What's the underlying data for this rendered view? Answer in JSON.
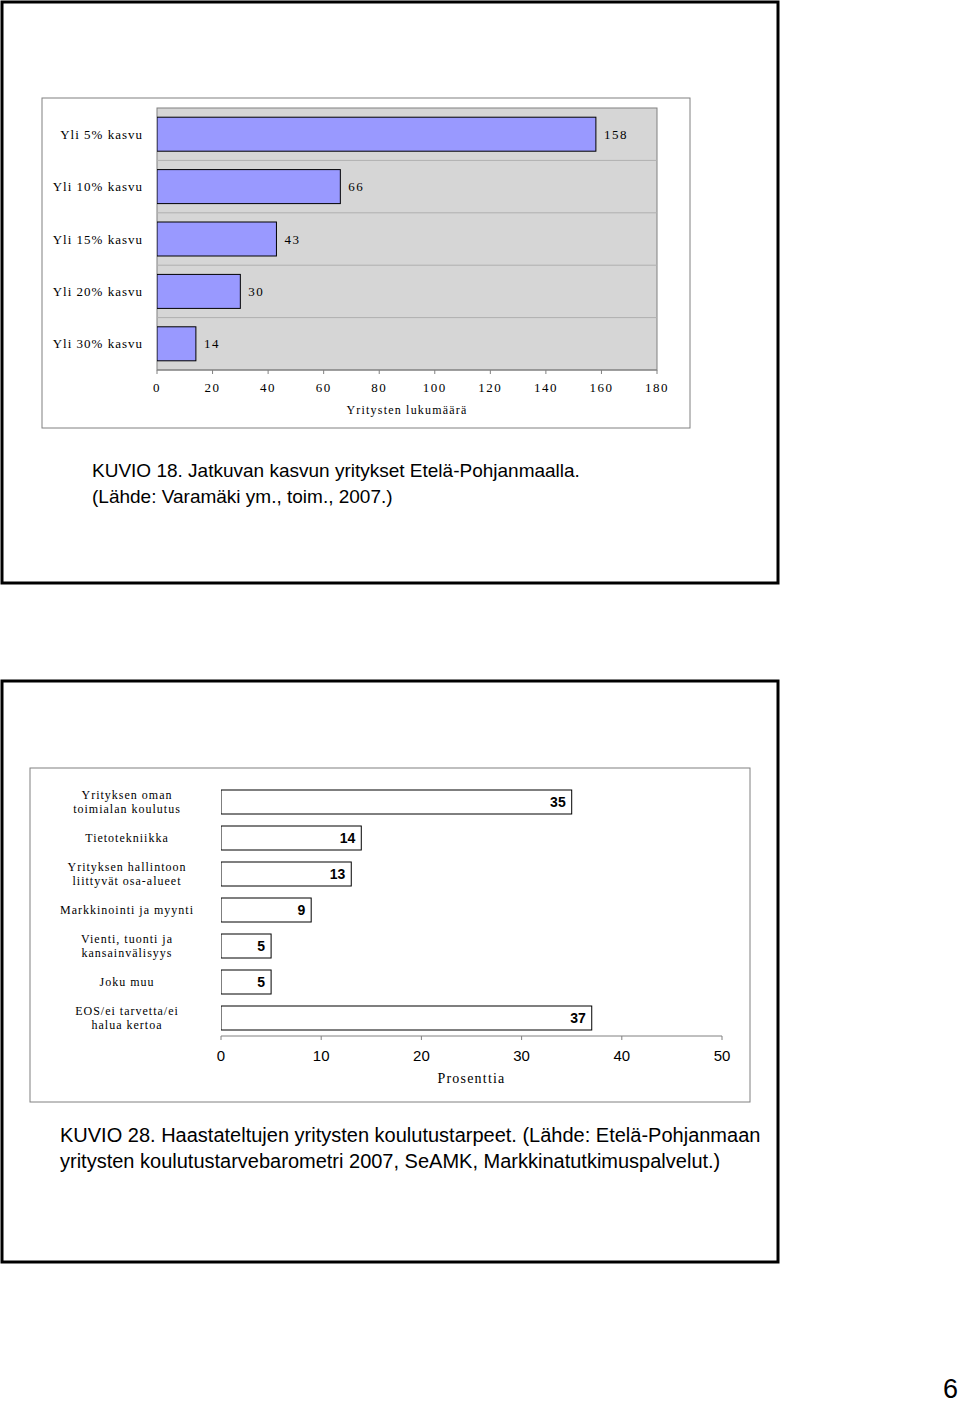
{
  "chart_data": [
    {
      "type": "bar",
      "orientation": "horizontal",
      "categories": [
        "Yli 5% kasvu",
        "Yli 10% kasvu",
        "Yli 15% kasvu",
        "Yli 20% kasvu",
        "Yli 30% kasvu"
      ],
      "values": [
        158,
        66,
        43,
        30,
        14
      ],
      "color": "#9999ff",
      "x_label": "Yritysten lukumäärä",
      "xlim": [
        0,
        180
      ],
      "xticks": [
        0,
        20,
        40,
        60,
        80,
        100,
        120,
        140,
        160,
        180
      ],
      "grid": true,
      "data_labels": true,
      "caption": [
        "KUVIO 18. Jatkuvan kasvun yritykset Etelä-Pohjanmaalla.",
        "(Lähde: Varamäki ym., toim., 2007.)"
      ]
    },
    {
      "type": "bar",
      "orientation": "horizontal",
      "categories": [
        "Yrityksen oman toimialan koulutus",
        "Tietotekniikka",
        "Yrityksen hallintoon liittyvät osa-alueet",
        "Markkinointi ja myynti",
        "Vienti, tuonti ja kansainvälisyys",
        "Joku muu",
        "EOS/ei tarvetta/ei halua kertoa"
      ],
      "values": [
        35,
        14,
        13,
        9,
        5,
        5,
        37
      ],
      "color": "#ffffff",
      "x_label": "Prosenttia",
      "xlim": [
        0,
        50
      ],
      "xticks": [
        0,
        10,
        20,
        30,
        40,
        50
      ],
      "grid": false,
      "data_labels": true,
      "caption": [
        "KUVIO 28. Haastateltujen yritysten koulutustarpeet. (Lähde: Etelä-Pohjanmaan",
        "yritysten koulutustarvebarometri 2007, SeAMK, Markkinatutkimuspalvelut.)"
      ]
    }
  ],
  "page_number": 6
}
